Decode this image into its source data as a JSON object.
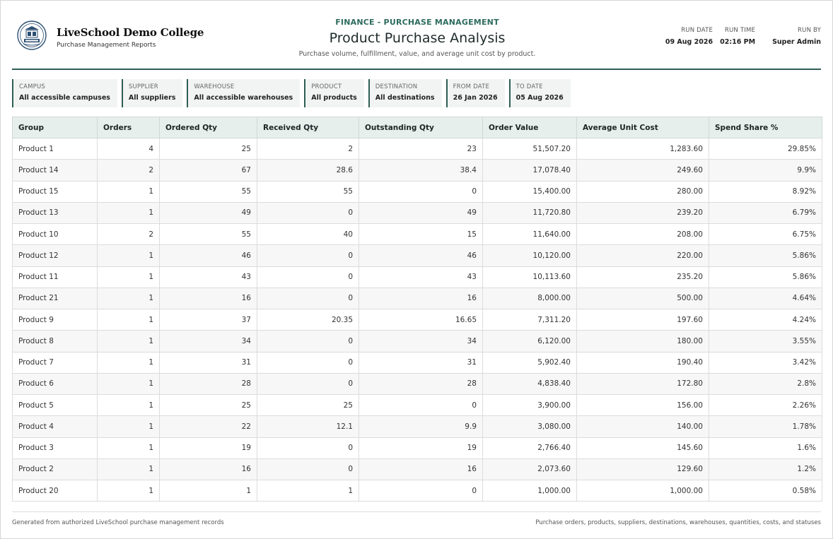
{
  "header": {
    "college_name": "LiveSchool Demo College",
    "college_subtitle": "Purchase Management Reports",
    "eyebrow": "FINANCE - PURCHASE MANAGEMENT",
    "title": "Product Purchase Analysis",
    "subtitle": "Purchase volume, fulfillment, value, and average unit cost by product.",
    "logo_icon": "college-crest-icon"
  },
  "run_info": {
    "run_date_label": "RUN DATE",
    "run_date": "09 Aug 2026",
    "run_time_label": "RUN TIME",
    "run_time": "02:16 PM",
    "run_by_label": "RUN BY",
    "run_by": "Super Admin"
  },
  "filters": [
    {
      "label": "CAMPUS",
      "value": "All accessible campuses"
    },
    {
      "label": "SUPPLIER",
      "value": "All suppliers"
    },
    {
      "label": "WAREHOUSE",
      "value": "All accessible warehouses"
    },
    {
      "label": "PRODUCT",
      "value": "All products"
    },
    {
      "label": "DESTINATION",
      "value": "All destinations"
    },
    {
      "label": "FROM DATE",
      "value": "26 Jan 2026"
    },
    {
      "label": "TO DATE",
      "value": "05 Aug 2026"
    }
  ],
  "table": {
    "columns": [
      "Group",
      "Orders",
      "Ordered Qty",
      "Received Qty",
      "Outstanding Qty",
      "Order Value",
      "Average Unit Cost",
      "Spend Share %"
    ],
    "rows": [
      [
        "Product 1",
        "4",
        "25",
        "2",
        "23",
        "51,507.20",
        "1,283.60",
        "29.85%"
      ],
      [
        "Product 14",
        "2",
        "67",
        "28.6",
        "38.4",
        "17,078.40",
        "249.60",
        "9.9%"
      ],
      [
        "Product 15",
        "1",
        "55",
        "55",
        "0",
        "15,400.00",
        "280.00",
        "8.92%"
      ],
      [
        "Product 13",
        "1",
        "49",
        "0",
        "49",
        "11,720.80",
        "239.20",
        "6.79%"
      ],
      [
        "Product 10",
        "2",
        "55",
        "40",
        "15",
        "11,640.00",
        "208.00",
        "6.75%"
      ],
      [
        "Product 12",
        "1",
        "46",
        "0",
        "46",
        "10,120.00",
        "220.00",
        "5.86%"
      ],
      [
        "Product 11",
        "1",
        "43",
        "0",
        "43",
        "10,113.60",
        "235.20",
        "5.86%"
      ],
      [
        "Product 21",
        "1",
        "16",
        "0",
        "16",
        "8,000.00",
        "500.00",
        "4.64%"
      ],
      [
        "Product 9",
        "1",
        "37",
        "20.35",
        "16.65",
        "7,311.20",
        "197.60",
        "4.24%"
      ],
      [
        "Product 8",
        "1",
        "34",
        "0",
        "34",
        "6,120.00",
        "180.00",
        "3.55%"
      ],
      [
        "Product 7",
        "1",
        "31",
        "0",
        "31",
        "5,902.40",
        "190.40",
        "3.42%"
      ],
      [
        "Product 6",
        "1",
        "28",
        "0",
        "28",
        "4,838.40",
        "172.80",
        "2.8%"
      ],
      [
        "Product 5",
        "1",
        "25",
        "25",
        "0",
        "3,900.00",
        "156.00",
        "2.26%"
      ],
      [
        "Product 4",
        "1",
        "22",
        "12.1",
        "9.9",
        "3,080.00",
        "140.00",
        "1.78%"
      ],
      [
        "Product 3",
        "1",
        "19",
        "0",
        "19",
        "2,766.40",
        "145.60",
        "1.6%"
      ],
      [
        "Product 2",
        "1",
        "16",
        "0",
        "16",
        "2,073.60",
        "129.60",
        "1.2%"
      ],
      [
        "Product 20",
        "1",
        "1",
        "1",
        "0",
        "1,000.00",
        "1,000.00",
        "0.58%"
      ]
    ]
  },
  "footer": {
    "left": "Generated from authorized LiveSchool purchase management records",
    "right": "Purchase orders, products, suppliers, destinations, warehouses, quantities, costs, and statuses"
  },
  "colors": {
    "accent": "#2e5d55",
    "eyebrow": "#2e6b5e",
    "header_bg": "#e6efec",
    "filter_bg": "#f2f4f3"
  }
}
